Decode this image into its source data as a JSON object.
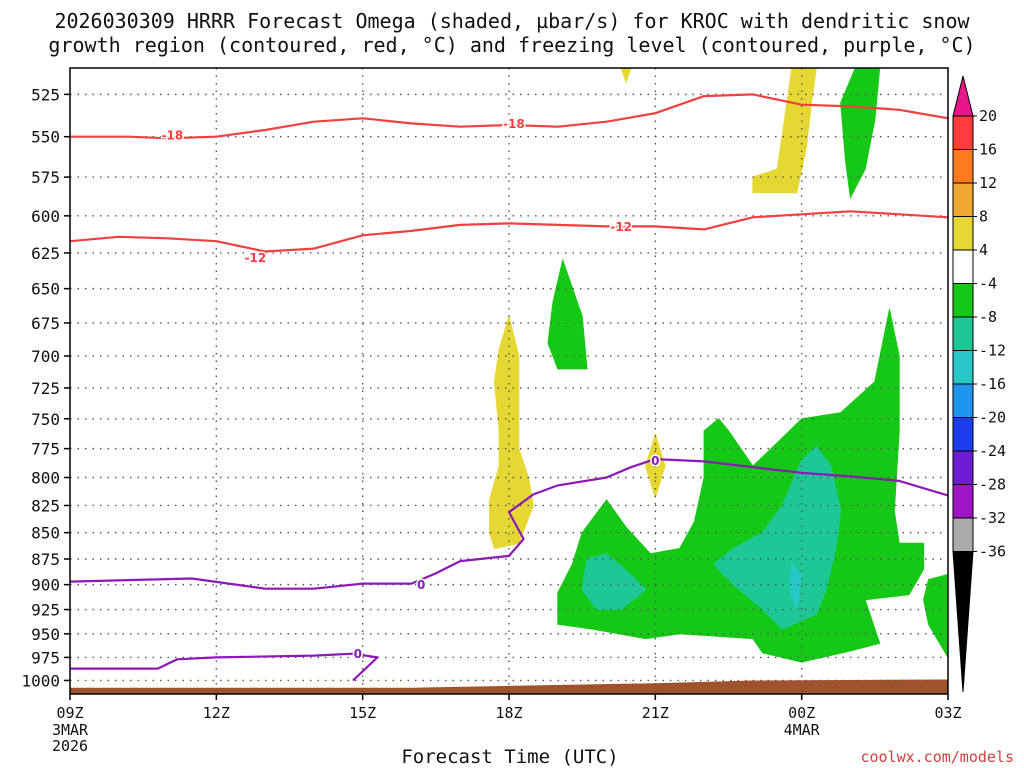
{
  "chart_data": {
    "type": "contour",
    "title_lines": [
      "2026030309 HRRR Forecast Omega (shaded, µbar/s) for KROC with dendritic snow",
      "growth region (contoured, red, °C) and freezing level (contoured, purple, °C)"
    ],
    "xlabel": "Forecast Time (UTC)",
    "credit": "coolwx.com/models",
    "x_ticks": [
      {
        "hour": 0,
        "label": "09Z",
        "sub": [
          "3MAR",
          "2026"
        ]
      },
      {
        "hour": 3,
        "label": "12Z",
        "sub": []
      },
      {
        "hour": 6,
        "label": "15Z",
        "sub": []
      },
      {
        "hour": 9,
        "label": "18Z",
        "sub": []
      },
      {
        "hour": 12,
        "label": "21Z",
        "sub": []
      },
      {
        "hour": 15,
        "label": "00Z",
        "sub": [
          "4MAR"
        ]
      },
      {
        "hour": 18,
        "label": "03Z",
        "sub": []
      }
    ],
    "x_range_hours_from_09Z": [
      0,
      18
    ],
    "y_ticks": [
      525,
      550,
      575,
      600,
      625,
      650,
      675,
      700,
      725,
      750,
      775,
      800,
      825,
      850,
      875,
      900,
      925,
      950,
      975,
      1000
    ],
    "y_range_mb": [
      510,
      1015
    ],
    "y_scale": "log-pressure",
    "grid": true,
    "colorbar": {
      "colors": [
        "#e8168a",
        "#ff3c3c",
        "#ff7a1e",
        "#f0a830",
        "#e6d832",
        "#ffffff",
        "#16c816",
        "#1ec896",
        "#28c8c8",
        "#1e96f0",
        "#1e3cf0",
        "#6e1ed2",
        "#a014c8",
        "#aaaaaa",
        "#000000"
      ],
      "labels": [
        "20",
        "16",
        "12",
        "8",
        "4",
        "-4",
        "-8",
        "-12",
        "-16",
        "-20",
        "-24",
        "-28",
        "-32",
        "-36"
      ]
    },
    "contour_lines": [
      {
        "name": "-18",
        "color": "#f04040",
        "label": "-18",
        "points": [
          [
            0,
            550
          ],
          [
            1.2,
            550
          ],
          [
            2,
            551
          ],
          [
            3,
            550
          ],
          [
            4,
            546
          ],
          [
            5,
            541
          ],
          [
            6,
            539
          ],
          [
            7,
            542
          ],
          [
            8,
            544
          ],
          [
            9,
            543
          ],
          [
            10,
            544
          ],
          [
            11,
            541
          ],
          [
            12,
            536
          ],
          [
            13,
            526
          ],
          [
            14,
            525
          ],
          [
            15,
            531
          ],
          [
            16,
            532
          ],
          [
            17,
            534
          ],
          [
            18,
            539
          ]
        ],
        "labels_at": [
          [
            2.1,
            549
          ],
          [
            9.1,
            542
          ]
        ]
      },
      {
        "name": "-12",
        "color": "#f04040",
        "label": "-12",
        "points": [
          [
            0,
            617
          ],
          [
            1,
            614
          ],
          [
            2,
            615
          ],
          [
            3,
            617
          ],
          [
            4,
            624
          ],
          [
            5,
            622
          ],
          [
            6,
            613
          ],
          [
            7,
            610
          ],
          [
            8,
            606
          ],
          [
            9,
            605
          ],
          [
            10,
            606
          ],
          [
            11,
            607
          ],
          [
            12,
            607
          ],
          [
            13,
            609
          ],
          [
            14,
            601
          ],
          [
            15,
            599
          ],
          [
            16,
            597
          ],
          [
            17,
            599
          ],
          [
            18,
            601
          ]
        ],
        "labels_at": [
          [
            3.8,
            628
          ],
          [
            11.3,
            607
          ]
        ]
      },
      {
        "name": "0",
        "color": "#8c18b8",
        "label": "0",
        "points": [
          [
            0,
            897
          ],
          [
            2.5,
            894
          ],
          [
            4,
            904
          ],
          [
            5,
            904
          ],
          [
            6,
            899
          ],
          [
            7,
            899
          ],
          [
            7.5,
            889
          ],
          [
            8,
            877
          ],
          [
            9,
            872
          ],
          [
            9.3,
            856
          ],
          [
            9,
            831
          ],
          [
            9.5,
            815
          ],
          [
            10,
            807
          ],
          [
            11,
            800
          ],
          [
            11.5,
            791
          ],
          [
            12,
            784
          ],
          [
            13,
            786
          ],
          [
            14,
            791
          ],
          [
            15,
            796
          ],
          [
            16,
            799
          ],
          [
            17,
            803
          ],
          [
            18,
            816
          ]
        ],
        "labels_at": [
          [
            7.2,
            900
          ],
          [
            12,
            785
          ]
        ]
      },
      {
        "name": "0-lower",
        "color": "#8c18b8",
        "label": "0",
        "points": [
          [
            0,
            987
          ],
          [
            1.8,
            987
          ],
          [
            2.2,
            977
          ],
          [
            3,
            975
          ],
          [
            5,
            973
          ],
          [
            5.8,
            971
          ],
          [
            6.3,
            975
          ],
          [
            6,
            990
          ],
          [
            5.8,
            1000
          ]
        ],
        "labels_at": [
          [
            5.9,
            971
          ]
        ]
      }
    ],
    "shaded_regions": [
      {
        "value": "4",
        "color": "#e6d832",
        "polygons": [
          [
            [
              11.3,
              510
            ],
            [
              11.5,
              510
            ],
            [
              11.4,
              518
            ]
          ],
          [
            [
              14.8,
              510
            ],
            [
              15.3,
              510
            ],
            [
              15.2,
              530
            ],
            [
              15.1,
              556
            ],
            [
              14.9,
              585
            ],
            [
              14.0,
              585
            ],
            [
              14.0,
              575
            ],
            [
              14.5,
              570
            ]
          ],
          [
            [
              9.0,
              670
            ],
            [
              9.2,
              700
            ],
            [
              9.2,
              735
            ],
            [
              9.2,
              775
            ],
            [
              9.4,
              800
            ],
            [
              9.5,
              825
            ],
            [
              9.2,
              860
            ],
            [
              8.7,
              865
            ],
            [
              8.6,
              850
            ],
            [
              8.6,
              820
            ],
            [
              8.8,
              790
            ],
            [
              8.8,
              760
            ],
            [
              8.7,
              720
            ],
            [
              8.8,
              695
            ]
          ],
          [
            [
              12.0,
              763
            ],
            [
              12.2,
              790
            ],
            [
              12.0,
              818
            ],
            [
              11.8,
              790
            ]
          ]
        ]
      },
      {
        "value": "-4",
        "color": "#16c816",
        "polygons": [
          [
            [
              16.1,
              510
            ],
            [
              16.6,
              510
            ],
            [
              16.5,
              540
            ],
            [
              16.3,
              570
            ],
            [
              16.0,
              588
            ],
            [
              15.9,
              565
            ],
            [
              15.8,
              530
            ]
          ],
          [
            [
              10.1,
              630
            ],
            [
              10.5,
              670
            ],
            [
              10.6,
              710
            ],
            [
              10.0,
              710
            ],
            [
              9.8,
              690
            ],
            [
              9.9,
              660
            ]
          ],
          [
            [
              16.8,
              665
            ],
            [
              17.0,
              700
            ],
            [
              17.0,
              760
            ],
            [
              16.9,
              830
            ],
            [
              17.0,
              860
            ],
            [
              17.5,
              860
            ],
            [
              17.5,
              885
            ],
            [
              17.2,
              910
            ],
            [
              16.3,
              915
            ],
            [
              16.6,
              960
            ],
            [
              16.0,
              968
            ],
            [
              15.0,
              980
            ],
            [
              14.2,
              970
            ],
            [
              14.0,
              955
            ],
            [
              12.5,
              950
            ],
            [
              11.8,
              955
            ],
            [
              10.7,
              945
            ],
            [
              10.0,
              940
            ],
            [
              10.0,
              908
            ],
            [
              10.3,
              880
            ],
            [
              10.5,
              850
            ],
            [
              11.0,
              820
            ],
            [
              11.4,
              845
            ],
            [
              11.9,
              870
            ],
            [
              12.5,
              865
            ],
            [
              12.8,
              840
            ],
            [
              13.0,
              800
            ],
            [
              13.0,
              760
            ],
            [
              13.3,
              750
            ],
            [
              13.5,
              760
            ],
            [
              14.0,
              790
            ],
            [
              14.5,
              770
            ],
            [
              15.0,
              750
            ],
            [
              15.8,
              745
            ],
            [
              16.5,
              720
            ]
          ],
          [
            [
              17.6,
              895
            ],
            [
              18.0,
              890
            ],
            [
              18.0,
              975
            ],
            [
              17.6,
              940
            ],
            [
              17.5,
              915
            ]
          ]
        ]
      },
      {
        "value": "-8",
        "color": "#1ec896",
        "polygons": [
          [
            [
              10.6,
              875
            ],
            [
              11.0,
              870
            ],
            [
              11.5,
              890
            ],
            [
              11.8,
              905
            ],
            [
              11.3,
              925
            ],
            [
              10.8,
              925
            ],
            [
              10.5,
              905
            ]
          ],
          [
            [
              15.0,
              785
            ],
            [
              15.3,
              773
            ],
            [
              15.6,
              790
            ],
            [
              15.8,
              830
            ],
            [
              15.7,
              865
            ],
            [
              15.5,
              905
            ],
            [
              15.3,
              930
            ],
            [
              14.6,
              945
            ],
            [
              14.2,
              925
            ],
            [
              13.6,
              900
            ],
            [
              13.2,
              880
            ],
            [
              13.6,
              865
            ],
            [
              14.2,
              850
            ],
            [
              14.6,
              825
            ]
          ]
        ]
      },
      {
        "value": "-12",
        "color": "#28c8c8",
        "polygons": [
          [
            [
              14.8,
              880
            ],
            [
              15.0,
              890
            ],
            [
              14.9,
              925
            ],
            [
              14.75,
              905
            ]
          ]
        ]
      }
    ]
  }
}
